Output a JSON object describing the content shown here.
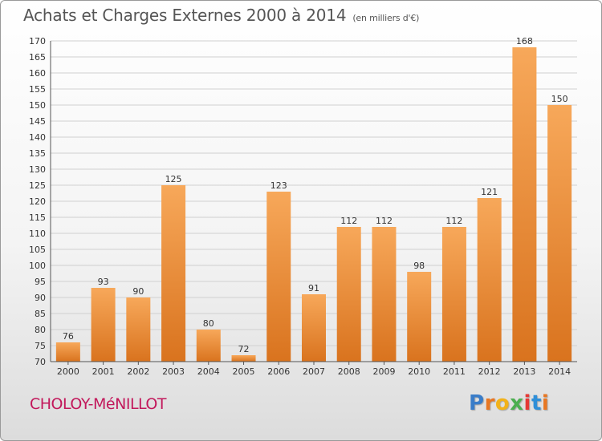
{
  "page": {
    "commune": "CHOLOY-MéNILLOT",
    "logo": {
      "letters": [
        "P",
        "r",
        "o",
        "x",
        "i",
        "t",
        "i"
      ],
      "colors": [
        "#3a7dc9",
        "#e87722",
        "#f2b21a",
        "#4caf50",
        "#e53935",
        "#2f8fd8",
        "#e87722"
      ]
    }
  },
  "chart_data": {
    "type": "bar",
    "title": "Achats et Charges Externes 2000 à 2014",
    "subtitle": "(en milliers d'€)",
    "categories": [
      "2000",
      "2001",
      "2002",
      "2003",
      "2004",
      "2005",
      "2006",
      "2007",
      "2008",
      "2009",
      "2010",
      "2011",
      "2012",
      "2013",
      "2014"
    ],
    "values": [
      76,
      93,
      90,
      125,
      80,
      72,
      123,
      91,
      112,
      112,
      98,
      112,
      121,
      168,
      150
    ],
    "data_labels": [
      "76",
      "93",
      "90",
      "125",
      "80",
      "72",
      "123",
      "91",
      "112",
      "112",
      "98",
      "112",
      "121",
      "168",
      "150"
    ],
    "ylim": [
      70,
      170
    ],
    "yticks": [
      "70",
      "75",
      "80",
      "85",
      "90",
      "95",
      "100",
      "105",
      "110",
      "115",
      "120",
      "125",
      "130",
      "135",
      "140",
      "145",
      "150",
      "155",
      "160",
      "165",
      "170"
    ],
    "grid": true,
    "bar_color": "#f0923c"
  }
}
